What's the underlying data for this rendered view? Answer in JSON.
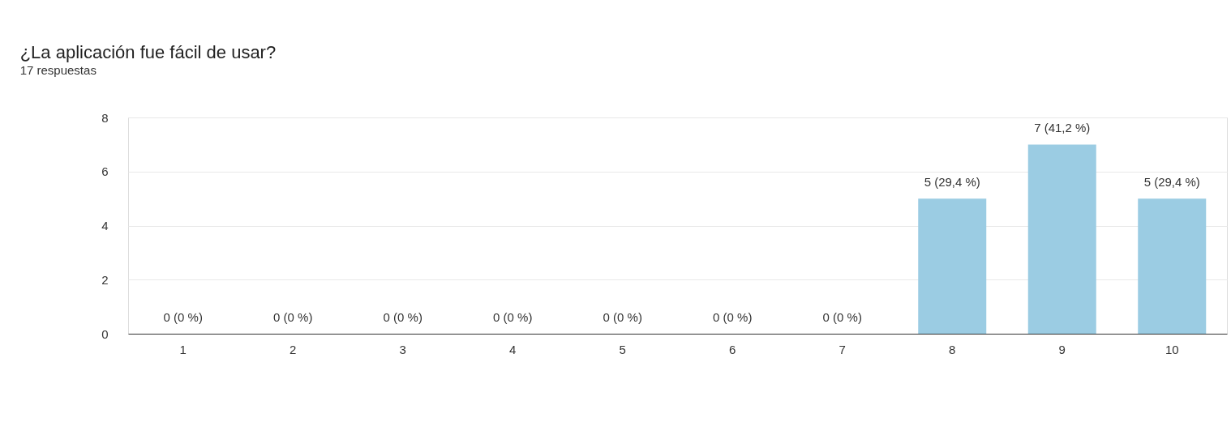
{
  "chart_data": {
    "type": "bar",
    "title": "¿La aplicación fue fácil de usar?",
    "subtitle": "17 respuestas",
    "categories": [
      "1",
      "2",
      "3",
      "4",
      "5",
      "6",
      "7",
      "8",
      "9",
      "10"
    ],
    "values": [
      0,
      0,
      0,
      0,
      0,
      0,
      0,
      5,
      7,
      5
    ],
    "value_labels": [
      "0 (0 %)",
      "0 (0 %)",
      "0 (0 %)",
      "0 (0 %)",
      "0 (0 %)",
      "0 (0 %)",
      "0 (0 %)",
      "5 (29,4 %)",
      "7 (41,2 %)",
      "5 (29,4 %)"
    ],
    "color": "#9bcce3",
    "ylim": [
      0,
      8
    ],
    "yticks": [
      0,
      2,
      4,
      6,
      8
    ],
    "grid": "y"
  }
}
